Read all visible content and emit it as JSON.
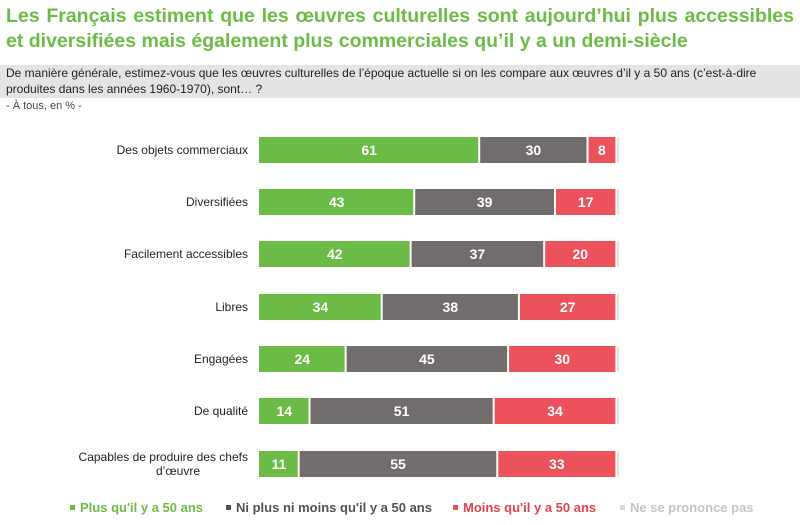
{
  "title": "Les Français estiment que les œuvres culturelles sont aujourd’hui plus accessibles et diversifiées mais également plus commerciales qu’il y a un demi-siècle",
  "question": "De manière générale, estimez-vous que les œuvres culturelles de l’époque actuelle si on les compare aux œuvres d’il y a 50 ans (c’est-à-dire produites dans les années 1960-1970), sont… ?",
  "base": "- À tous, en % -",
  "colors": {
    "title": "#6cbb47",
    "plus": "#6cbb47",
    "neutral": "#726d6d",
    "moins": "#ec525b",
    "nsp": "#d9d9d9"
  },
  "chart_data": {
    "type": "bar",
    "orientation": "horizontal",
    "stacked": true,
    "title": "Les Français estiment que les œuvres culturelles sont aujourd’hui plus accessibles et diversifiées mais également plus commerciales qu’il y a un demi-siècle",
    "xlabel": "",
    "ylabel": "",
    "unit": "%",
    "xlim": [
      0,
      100
    ],
    "grid": false,
    "legend_position": "bottom",
    "categories": [
      "Des objets commerciaux",
      "Diversifiées",
      "Facilement accessibles",
      "Libres",
      "Engagées",
      "De qualité",
      "Capables de produire des chefs d’œuvre"
    ],
    "series": [
      {
        "name": "Plus qu'il y a 50 ans",
        "color": "#6cbb47",
        "values": [
          61,
          43,
          42,
          34,
          24,
          14,
          11
        ]
      },
      {
        "name": "Ni plus ni moins qu'il y a 50 ans",
        "color": "#726d6d",
        "values": [
          30,
          39,
          37,
          38,
          45,
          51,
          55
        ]
      },
      {
        "name": "Moins qu'il y a 50 ans",
        "color": "#ec525b",
        "values": [
          8,
          17,
          20,
          27,
          30,
          34,
          33
        ]
      },
      {
        "name": "Ne se prononce pas",
        "color": "#d9d9d9",
        "values": [
          1,
          1,
          1,
          1,
          1,
          1,
          1
        ],
        "labels_shown": false
      }
    ]
  },
  "row_labels": [
    [
      "Des objets commerciaux"
    ],
    [
      "Diversifiées"
    ],
    [
      "Facilement accessibles"
    ],
    [
      "Libres"
    ],
    [
      "Engagées"
    ],
    [
      "De qualité"
    ],
    [
      "Capables de produire des chefs",
      "d’œuvre"
    ]
  ],
  "legend": [
    {
      "label": "Plus qu'il y a 50 ans",
      "color": "#6cbb47",
      "text_color": "#6cbb47"
    },
    {
      "label": "Ni plus ni moins qu'il y a 50 ans",
      "color": "#55504f",
      "text_color": "#55504f"
    },
    {
      "label": "Moins qu'il y a 50 ans",
      "color": "#ec525b",
      "text_color": "#e0434d"
    },
    {
      "label": "Ne se prononce pas",
      "color": "#d9d9d9",
      "text_color": "#c4c4c4"
    }
  ]
}
